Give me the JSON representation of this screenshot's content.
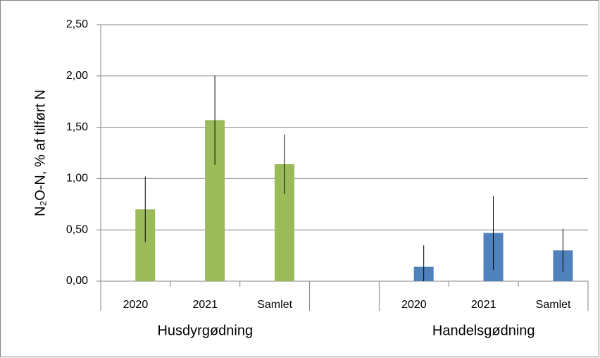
{
  "chart_data": {
    "type": "bar",
    "ylabel": "N₂O-N, % af tilført N",
    "categories": [
      "2020",
      "2021",
      "Samlet",
      null,
      "2020",
      "2021",
      "Samlet"
    ],
    "group_labels": [
      "Husdyrgødning",
      "Handelsgødning"
    ],
    "values": [
      0.7,
      1.57,
      1.14,
      null,
      0.14,
      0.47,
      0.3
    ],
    "errors": [
      0.32,
      0.435,
      0.29,
      null,
      0.21,
      0.36,
      0.21
    ],
    "colors": [
      "#9bbb59",
      "#9bbb59",
      "#9bbb59",
      null,
      "#4f81bd",
      "#4f81bd",
      "#4f81bd"
    ],
    "ylim": [
      0,
      2.5
    ],
    "yticks": [
      {
        "value": 0,
        "label": "0,00"
      },
      {
        "value": 0.5,
        "label": "0,50"
      },
      {
        "value": 1,
        "label": "1,00"
      },
      {
        "value": 1.5,
        "label": "1,50"
      },
      {
        "value": 2,
        "label": "2,00"
      },
      {
        "value": 2.5,
        "label": "2,50"
      }
    ],
    "grid": true
  }
}
